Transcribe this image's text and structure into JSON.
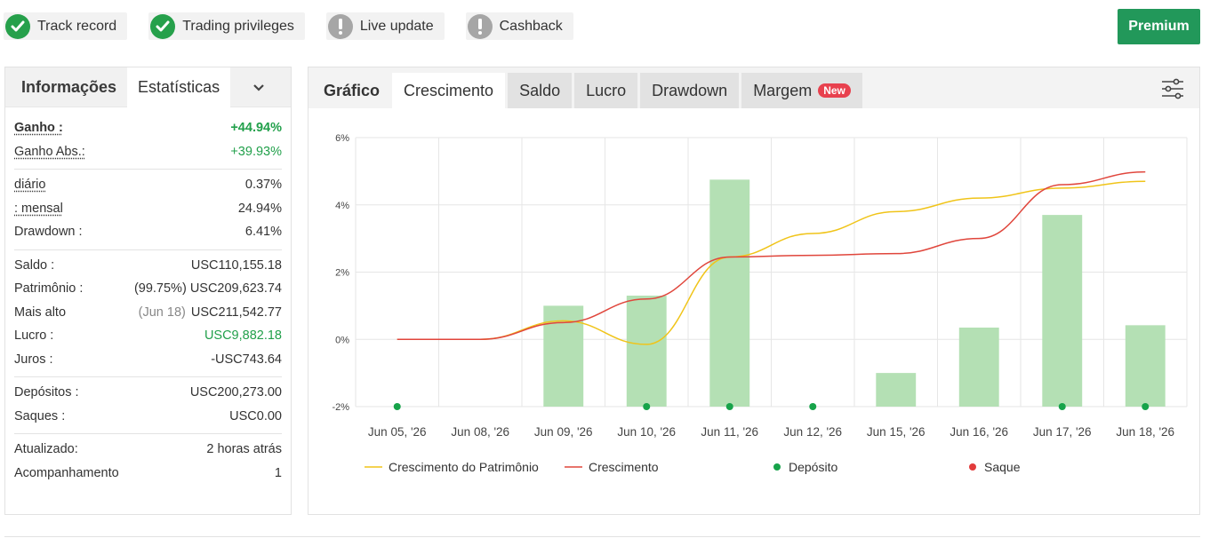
{
  "badges": [
    {
      "label": "Track record",
      "status": "ok"
    },
    {
      "label": "Trading privileges",
      "status": "ok"
    },
    {
      "label": "Live update",
      "status": "warn"
    },
    {
      "label": "Cashback",
      "status": "warn"
    }
  ],
  "premium_label": "Premium",
  "left_tabs": {
    "info": "Informações",
    "stats": "Estatísticas",
    "more_icon": "chevron-down-icon"
  },
  "stats": {
    "gain": {
      "k": "Ganho :",
      "v": "+44.94%"
    },
    "gain_abs": {
      "k": "Ganho Abs.:",
      "v": "+39.93%"
    },
    "daily": {
      "k": "diário",
      "v": "0.37%"
    },
    "monthly": {
      "k": ": mensal",
      "v": "24.94%"
    },
    "drawdown": {
      "k": "Drawdown :",
      "v": "6.41%"
    },
    "balance": {
      "k": "Saldo :",
      "v": "USC110,155.18"
    },
    "equity": {
      "k": "Patrimônio :",
      "pct": "(99.75%)",
      "v": "USC209,623.74"
    },
    "highest": {
      "k": "Mais alto",
      "date": "(Jun 18)",
      "v": "USC211,542.77"
    },
    "profit": {
      "k": "Lucro :",
      "v": "USC9,882.18"
    },
    "interest": {
      "k": "Juros :",
      "v": "-USC743.64"
    },
    "deposits": {
      "k": "Depósitos :",
      "v": "USC200,273.00"
    },
    "withdrawals": {
      "k": "Saques :",
      "v": "USC0.00"
    },
    "updated": {
      "k": "Atualizado:",
      "v": "2 horas atrás"
    },
    "followers": {
      "k": "Acompanhamento",
      "v": "1"
    }
  },
  "chart_tabs": {
    "title": "Gráfico",
    "growth": "Crescimento",
    "balance": "Saldo",
    "profit": "Lucro",
    "drawdown": "Drawdown",
    "margin": "Margem",
    "new_badge": "New",
    "filter_icon": "sliders-icon"
  },
  "colors": {
    "equity_growth": "#f0c419",
    "growth": "#e0463c",
    "deposit": "#17a34a",
    "withdrawal": "#e23b3b",
    "bars": "#b4e0b4",
    "premium": "#22985a"
  },
  "chart_data": {
    "type": "bar+line",
    "categories": [
      "Jun 05, '26",
      "Jun 08, '26",
      "Jun 09, '26",
      "Jun 10, '26",
      "Jun 11, '26",
      "Jun 12, '26",
      "Jun 15, '26",
      "Jun 16, '26",
      "Jun 17, '26",
      "Jun 18, '26"
    ],
    "y_ticks": [
      "6%",
      "4%",
      "2%",
      "0%",
      "-2%"
    ],
    "ylim": [
      -2,
      6
    ],
    "bars": [
      null,
      null,
      1.0,
      1.3,
      4.75,
      null,
      -1.0,
      0.35,
      3.7,
      0.42
    ],
    "series": [
      {
        "name": "Crescimento do Patrimônio",
        "values": [
          0,
          0,
          0.55,
          -0.15,
          2.45,
          3.15,
          3.8,
          4.2,
          4.5,
          4.7
        ]
      },
      {
        "name": "Crescimento",
        "values": [
          0,
          0,
          0.5,
          1.2,
          2.45,
          2.5,
          2.55,
          3.0,
          4.6,
          4.98
        ]
      }
    ],
    "deposits_at": [
      0,
      3,
      4,
      5,
      8,
      9
    ],
    "legend": [
      {
        "label": "Crescimento do Patrimônio",
        "kind": "line",
        "color": "#f0c419"
      },
      {
        "label": "Crescimento",
        "kind": "line",
        "color": "#e0463c"
      },
      {
        "label": "Depósito",
        "kind": "dot",
        "color": "#17a34a"
      },
      {
        "label": "Saque",
        "kind": "dot",
        "color": "#e23b3b"
      }
    ],
    "legend_position": "bottom",
    "grid": true
  }
}
